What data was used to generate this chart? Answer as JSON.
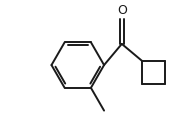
{
  "bg_color": "#ffffff",
  "line_color": "#1a1a1a",
  "line_width": 1.4,
  "figsize": [
    1.96,
    1.34
  ],
  "dpi": 100,
  "oxygen_label": "O",
  "oxygen_fontsize": 9
}
